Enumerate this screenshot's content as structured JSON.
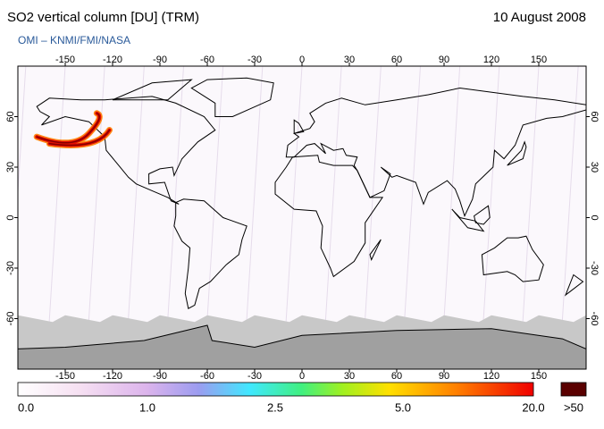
{
  "header": {
    "title": "SO2 vertical column [DU] (TRM)",
    "date": "10 August 2008",
    "subtitle": "OMI  –  KNMI/FMI/NASA"
  },
  "map": {
    "lon_ticks": [
      -150,
      -120,
      -90,
      -60,
      -30,
      0,
      30,
      60,
      90,
      120,
      150
    ],
    "lat_ticks": [
      60,
      30,
      0,
      -30,
      -60
    ]
  },
  "colorbar": {
    "labels": [
      "0.0",
      "1.0",
      "2.5",
      "5.0",
      "20.0"
    ],
    "overflow_label": ">50"
  }
}
